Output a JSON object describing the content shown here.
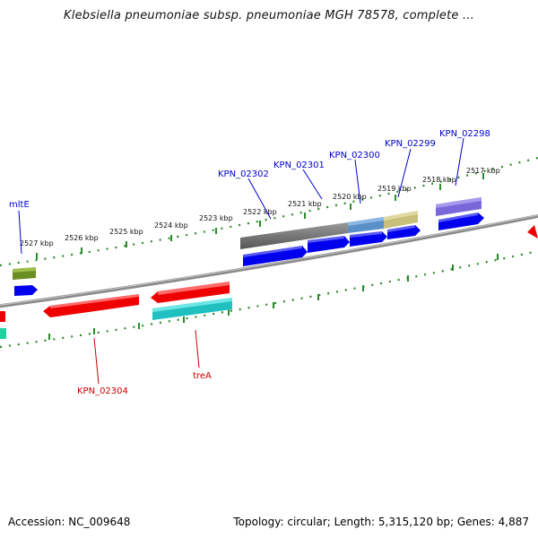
{
  "title": "Klebsiella pneumoniae subsp. pneumoniae MGH 78578, complete ...",
  "accession": "Accession: NC_009648",
  "topology": "Topology: circular; Length: 5,315,120 bp; Genes: 4,887",
  "colors": {
    "backbone": "#808080",
    "tick": "#2a8a2a",
    "plus_label": "#0000cc",
    "minus_label": "#cc0000"
  },
  "ruler_upper": [
    {
      "label": "2527 kbp"
    },
    {
      "label": "2526 kbp"
    },
    {
      "label": "2525 kbp"
    },
    {
      "label": "2524 kbp"
    },
    {
      "label": "2523 kbp"
    },
    {
      "label": "2522 kbp"
    },
    {
      "label": "2521 kbp"
    },
    {
      "label": "2520 kbp"
    },
    {
      "label": "2519 kbp"
    },
    {
      "label": "2518 kbp"
    },
    {
      "label": "2517 kbp"
    }
  ],
  "gene_labels_plus": [
    {
      "label": "mltE"
    },
    {
      "label": "KPN_02302"
    },
    {
      "label": "KPN_02301"
    },
    {
      "label": "KPN_02300"
    },
    {
      "label": "KPN_02299"
    },
    {
      "label": "KPN_02298"
    }
  ],
  "gene_labels_minus": [
    {
      "label": "KPN_02304"
    },
    {
      "label": "treA"
    }
  ],
  "features": [
    {
      "name": "mltE-gene-box",
      "color": "#6b8e23",
      "strand": "plus"
    },
    {
      "name": "mltE-cds-arrow",
      "color": "#0000ee",
      "strand": "plus"
    },
    {
      "name": "KPN_02302-gene-box",
      "color": "#6e6e6e",
      "strand": "plus"
    },
    {
      "name": "KPN_02301-gene-box",
      "color": "#5a8fc8",
      "strand": "plus"
    },
    {
      "name": "KPN_02300-gene-box",
      "color": "#c8bf7a",
      "strand": "plus"
    },
    {
      "name": "KPN_02298-gene-box",
      "color": "#7b68d8",
      "strand": "plus"
    },
    {
      "name": "KPN_02304-gene-arrow",
      "color": "#ee0000",
      "strand": "minus"
    },
    {
      "name": "treA-gene-arrow",
      "color": "#ee0000",
      "strand": "minus"
    },
    {
      "name": "treA-cds-box",
      "color": "#20c0c0",
      "strand": "minus"
    }
  ]
}
